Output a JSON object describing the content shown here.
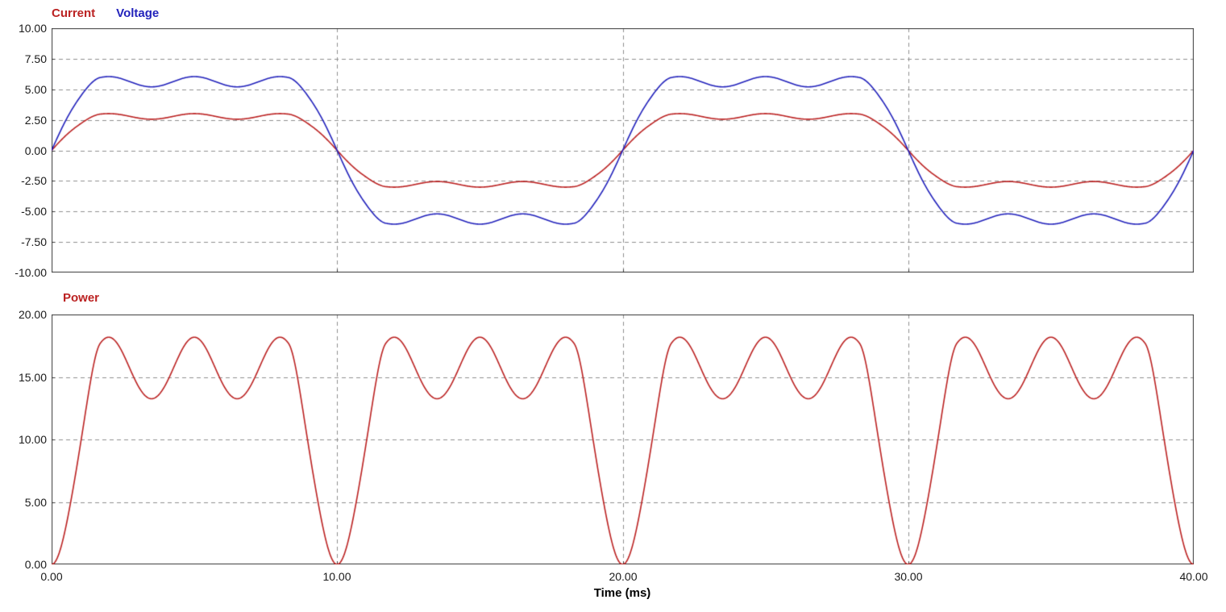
{
  "window": {
    "background": "#ffffff"
  },
  "chart_data": [
    {
      "type": "line",
      "title": "",
      "legend_position": "top-left",
      "legend": [
        {
          "label": "Current",
          "color": "#bb2222"
        },
        {
          "label": "Voltage",
          "color": "#2222bb"
        }
      ],
      "x": {
        "min": 0,
        "max": 40,
        "unit": "ms",
        "gridlines": [
          10,
          20,
          30
        ],
        "show_tick_labels": false
      },
      "y": {
        "min": -10,
        "max": 10,
        "step": 2.5,
        "tick_labels": [
          "10.00",
          "7.50",
          "5.00",
          "2.50",
          "0.00",
          "-2.50",
          "-5.00",
          "-7.50",
          "-10.00"
        ],
        "gridlines": [
          7.5,
          5,
          2.5,
          0,
          -2.5,
          -5,
          -7.5
        ]
      },
      "grid": {
        "style": "dashed",
        "color": "#8f8f8f"
      },
      "series": [
        {
          "name": "Current",
          "color": "#bb2222",
          "model": {
            "kind": "smoothed_square_with_ripple",
            "period_ms": 20,
            "plateau": 2.78,
            "ripple_amplitude": 0.23,
            "ripple_period_ms": 3,
            "edge_rise_ms": 1.7
          },
          "key_points": {
            "peak": 3.0,
            "plateau_dip": 2.55,
            "ripple_peak_times_ms": [
              2,
              5,
              8
            ],
            "zero_crossings_ms": [
              0,
              10,
              20,
              30,
              40
            ]
          }
        },
        {
          "name": "Voltage",
          "color": "#2222bb",
          "model": {
            "kind": "smoothed_square_with_ripple",
            "period_ms": 20,
            "plateau": 5.62,
            "ripple_amplitude": 0.42,
            "ripple_period_ms": 3,
            "edge_rise_ms": 1.7
          },
          "key_points": {
            "peak": 6.05,
            "plateau_dip": 5.2,
            "ripple_peak_times_ms": [
              2,
              5,
              8
            ],
            "zero_crossings_ms": [
              0,
              10,
              20,
              30,
              40
            ]
          }
        }
      ]
    },
    {
      "type": "line",
      "title": "",
      "legend_position": "top-left",
      "legend": [
        {
          "label": "Power",
          "color": "#bb2222"
        }
      ],
      "x": {
        "min": 0,
        "max": 40,
        "unit": "ms",
        "gridlines": [
          10,
          20,
          30
        ],
        "tick_values": [
          0,
          10,
          20,
          30,
          40
        ],
        "tick_labels": [
          "0.00",
          "10.00",
          "20.00",
          "30.00",
          "40.00"
        ],
        "axis_label": "Time (ms)"
      },
      "y": {
        "min": 0,
        "max": 20,
        "step": 5,
        "tick_labels": [
          "20.00",
          "15.00",
          "10.00",
          "5.00",
          "0.00"
        ],
        "gridlines": [
          5,
          10,
          15
        ]
      },
      "grid": {
        "style": "dashed",
        "color": "#8f8f8f"
      },
      "series": [
        {
          "name": "Power",
          "color": "#bb2222",
          "model": {
            "kind": "product",
            "of": [
              "Voltage",
              "Current"
            ]
          },
          "key_points": {
            "hump_peak": 18.2,
            "hump_times_ms": [
              2,
              5,
              8,
              22,
              25,
              28
            ],
            "dip_between_humps": 13.3,
            "zeros_ms": [
              0,
              10,
              20,
              30,
              40
            ]
          }
        }
      ]
    }
  ]
}
